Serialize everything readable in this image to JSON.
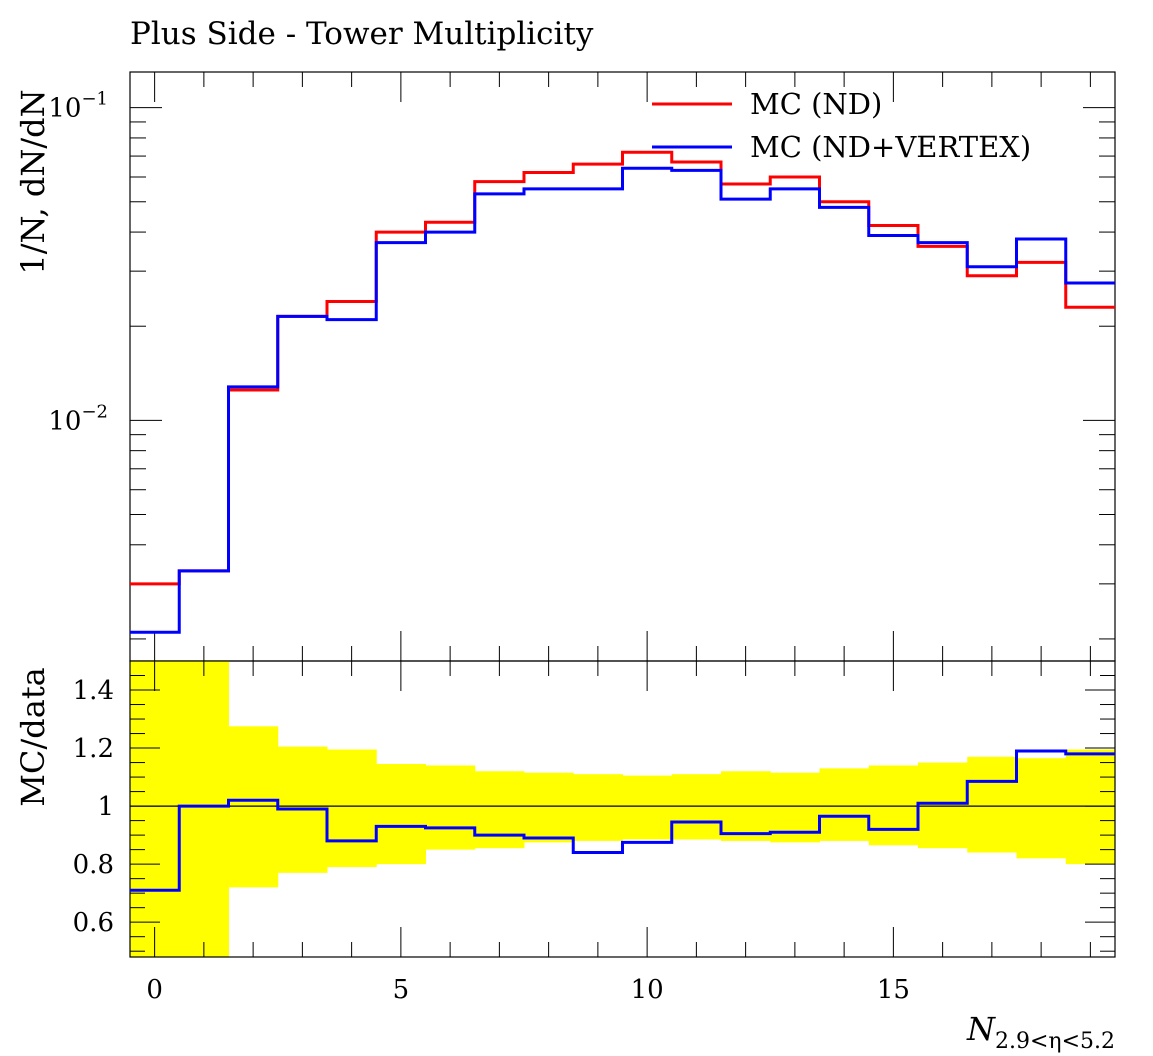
{
  "title": "Plus Side - Tower Multiplicity",
  "chart_data": [
    {
      "type": "line",
      "panel": "main",
      "title": "Plus Side - Tower Multiplicity",
      "xlabel": "N_{2.9<η<5.2}",
      "ylabel": "1/N, dN/dN",
      "yscale": "log",
      "xlim": [
        -0.5,
        19.5
      ],
      "ylim": [
        0.0017,
        0.13
      ],
      "y_tick_labels": [
        "10^-2",
        "10^-1"
      ],
      "x_tick_labels": [
        "0",
        "5",
        "10",
        "15"
      ],
      "x_bin_edges": [
        -0.5,
        0.5,
        1.5,
        2.5,
        3.5,
        4.5,
        5.5,
        6.5,
        7.5,
        8.5,
        9.5,
        10.5,
        11.5,
        12.5,
        13.5,
        14.5,
        15.5,
        16.5,
        17.5,
        18.5,
        19.5
      ],
      "legend_position": "top-right",
      "series": [
        {
          "name": "MC (ND)",
          "color": "#ff0000",
          "values": [
            0.003,
            0.0033,
            0.0125,
            0.0215,
            0.024,
            0.04,
            0.043,
            0.058,
            0.062,
            0.066,
            0.072,
            0.067,
            0.057,
            0.06,
            0.05,
            0.042,
            0.036,
            0.029,
            0.032,
            0.023
          ]
        },
        {
          "name": "MC (ND+VERTEX)",
          "color": "#0000ff",
          "values": [
            0.0021,
            0.0033,
            0.0128,
            0.0215,
            0.021,
            0.037,
            0.04,
            0.053,
            0.055,
            0.055,
            0.064,
            0.063,
            0.051,
            0.055,
            0.048,
            0.039,
            0.037,
            0.031,
            0.038,
            0.0275
          ]
        }
      ]
    },
    {
      "type": "line",
      "panel": "ratio",
      "xlabel": "N_{2.9<η<5.2}",
      "ylabel": "MC/data",
      "xlim": [
        -0.5,
        19.5
      ],
      "ylim": [
        0.48,
        1.5
      ],
      "y_tick_labels": [
        "0.6",
        "0.8",
        "1",
        "1.2",
        "1.4"
      ],
      "x_tick_labels": [
        "0",
        "5",
        "10",
        "15"
      ],
      "reference_line": 1.0,
      "x_bin_edges": [
        -0.5,
        0.5,
        1.5,
        2.5,
        3.5,
        4.5,
        5.5,
        6.5,
        7.5,
        8.5,
        9.5,
        10.5,
        11.5,
        12.5,
        13.5,
        14.5,
        15.5,
        16.5,
        17.5,
        18.5,
        19.5
      ],
      "uncertainty_band": {
        "color": "#ffff00",
        "lower": [
          0.48,
          0.48,
          0.72,
          0.77,
          0.79,
          0.8,
          0.85,
          0.855,
          0.875,
          0.88,
          0.885,
          0.885,
          0.88,
          0.875,
          0.88,
          0.865,
          0.855,
          0.84,
          0.82,
          0.8
        ],
        "upper": [
          1.5,
          1.5,
          1.275,
          1.205,
          1.195,
          1.145,
          1.14,
          1.12,
          1.115,
          1.11,
          1.105,
          1.11,
          1.12,
          1.115,
          1.13,
          1.14,
          1.15,
          1.17,
          1.165,
          1.195
        ]
      },
      "series": [
        {
          "name": "MC (ND+VERTEX)",
          "color": "#0000ff",
          "values": [
            0.71,
            1.0,
            1.02,
            0.99,
            0.88,
            0.93,
            0.925,
            0.9,
            0.89,
            0.84,
            0.875,
            0.945,
            0.905,
            0.91,
            0.965,
            0.92,
            1.01,
            1.085,
            1.19,
            1.18
          ]
        }
      ]
    }
  ]
}
